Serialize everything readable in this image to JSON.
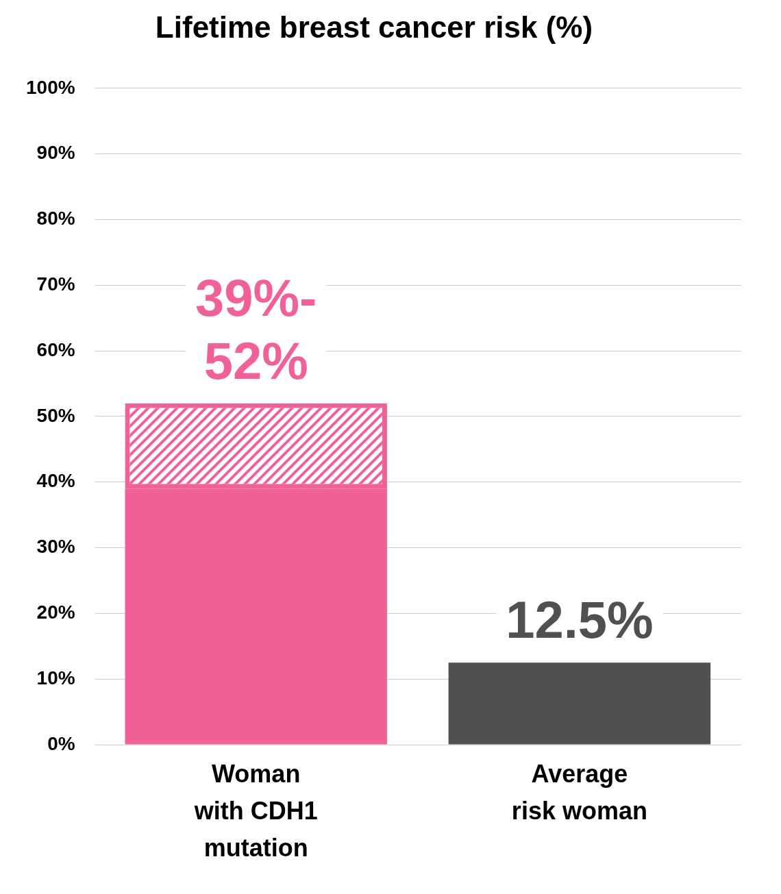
{
  "chart_data": {
    "type": "bar",
    "title": "Lifetime breast cancer risk (%)",
    "categories": [
      "Woman\nwith CDH1\nmutation",
      "Average\nrisk woman"
    ],
    "values": [
      39,
      12.5
    ],
    "upper": [
      52,
      null
    ],
    "value_labels": [
      "39%-\n52%",
      "12.5%"
    ],
    "data_labels": true,
    "colors": [
      "#f06198",
      "#505050"
    ],
    "ylim": [
      0,
      100
    ],
    "yticks": [
      {
        "value": 0,
        "label": "0%"
      },
      {
        "value": 10,
        "label": "10%"
      },
      {
        "value": 20,
        "label": "20%"
      },
      {
        "value": 30,
        "label": "30%"
      },
      {
        "value": 40,
        "label": "40%"
      },
      {
        "value": 50,
        "label": "50%"
      },
      {
        "value": 60,
        "label": "60%"
      },
      {
        "value": 70,
        "label": "70%"
      },
      {
        "value": 80,
        "label": "80%"
      },
      {
        "value": 90,
        "label": "90%"
      },
      {
        "value": 100,
        "label": "100%"
      }
    ],
    "grid": true
  }
}
